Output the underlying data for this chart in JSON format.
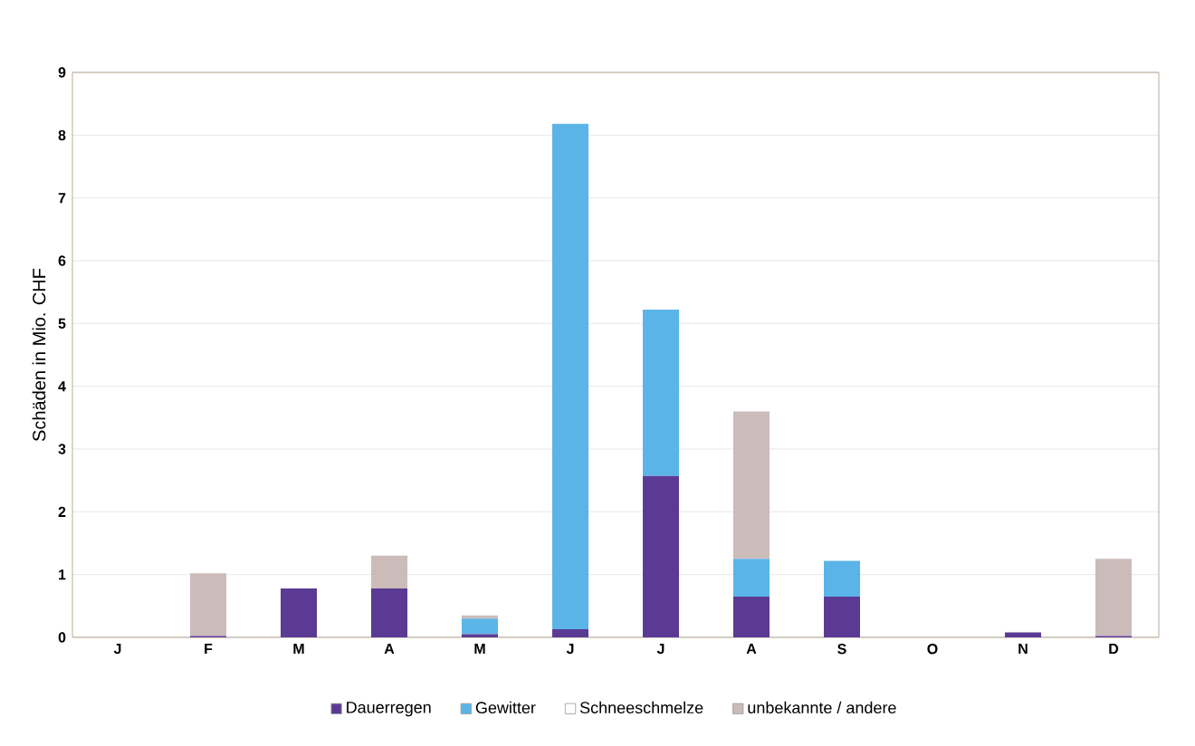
{
  "chart_data": {
    "type": "bar",
    "stacked": true,
    "ylabel": "Schäden in Mio. CHF",
    "categories": [
      "J",
      "F",
      "M",
      "A",
      "M",
      "J",
      "J",
      "A",
      "S",
      "O",
      "N",
      "D"
    ],
    "series": [
      {
        "name": "Dauerregen",
        "color": "#5b3a94",
        "values": [
          0,
          0.02,
          0.78,
          0.78,
          0.05,
          0.13,
          2.57,
          0.65,
          0.65,
          0,
          0.08,
          0.02
        ]
      },
      {
        "name": "Gewitter",
        "color": "#5bb4e8",
        "values": [
          0,
          0,
          0,
          0,
          0.25,
          8.05,
          2.65,
          0.6,
          0.57,
          0,
          0,
          0
        ]
      },
      {
        "name": "Schneeschmelze",
        "color": "#ffffff",
        "values": [
          0,
          0,
          0,
          0,
          0,
          0,
          0,
          0,
          0,
          0,
          0,
          0
        ]
      },
      {
        "name": "unbekannte / andere",
        "color": "#cbbcb9",
        "values": [
          0,
          1.0,
          0,
          0.52,
          0.05,
          0,
          0,
          2.35,
          0,
          0,
          0,
          1.23
        ]
      }
    ],
    "ylim": [
      0,
      9
    ],
    "yticks": [
      0,
      1,
      2,
      3,
      4,
      5,
      6,
      7,
      8,
      9
    ],
    "grid": "y",
    "legend": "bottom"
  }
}
